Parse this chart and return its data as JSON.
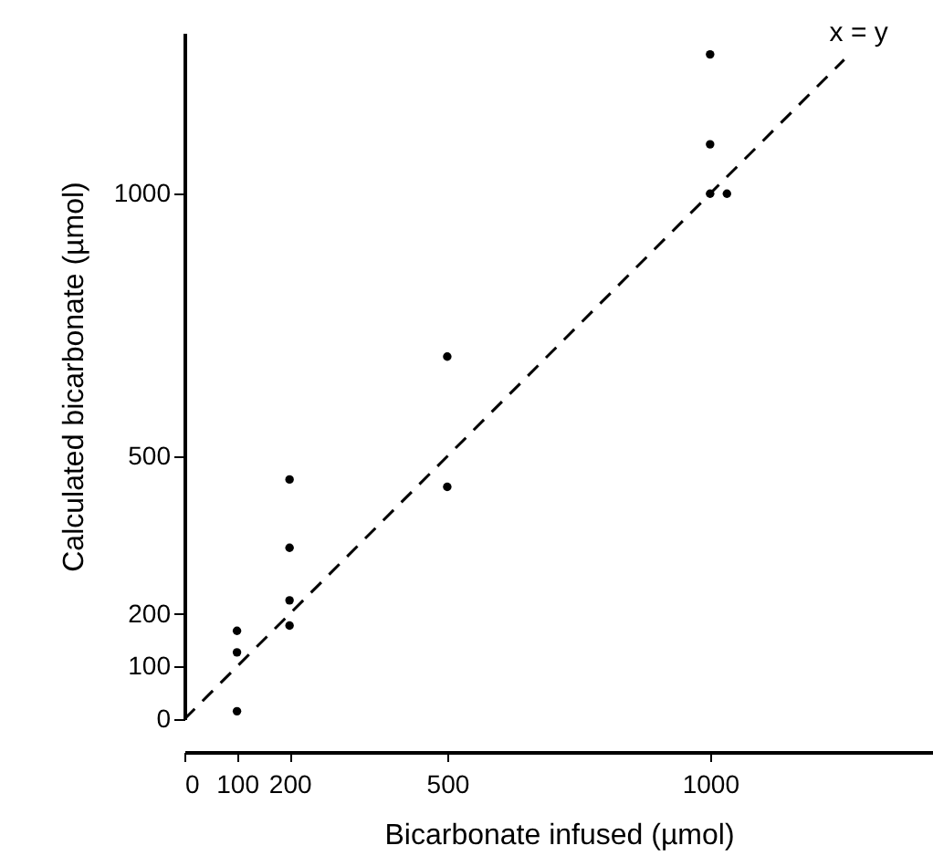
{
  "chart_data": {
    "type": "scatter",
    "xlabel": "Bicarbonate infused (µmol)",
    "ylabel": "Calculated bicarbonate (µmol)",
    "xlim": [
      0,
      1424
    ],
    "ylim": [
      0,
      1306
    ],
    "xticks": [
      0,
      100,
      200,
      500,
      1000
    ],
    "yticks": [
      0,
      100,
      200,
      500,
      1000
    ],
    "grid": false,
    "marker": "circle",
    "series": [
      {
        "type": "line",
        "color": "#000000",
        "line_style": "dashed",
        "marker": "none",
        "x": [
          0,
          1255
        ],
        "values": [
          0,
          1255
        ]
      },
      {
        "color": "#000000",
        "x": [
          1000,
          1000,
          1000,
          1032,
          500,
          200,
          200,
          200,
          200,
          500,
          100,
          100,
          100
        ],
        "values": [
          1265,
          1094,
          1000,
          1000,
          690,
          456,
          326,
          226,
          178,
          442,
          168,
          127,
          15
        ]
      }
    ],
    "annotations": [
      {
        "text": "x = y",
        "x": 1255,
        "y": 1255
      }
    ]
  }
}
